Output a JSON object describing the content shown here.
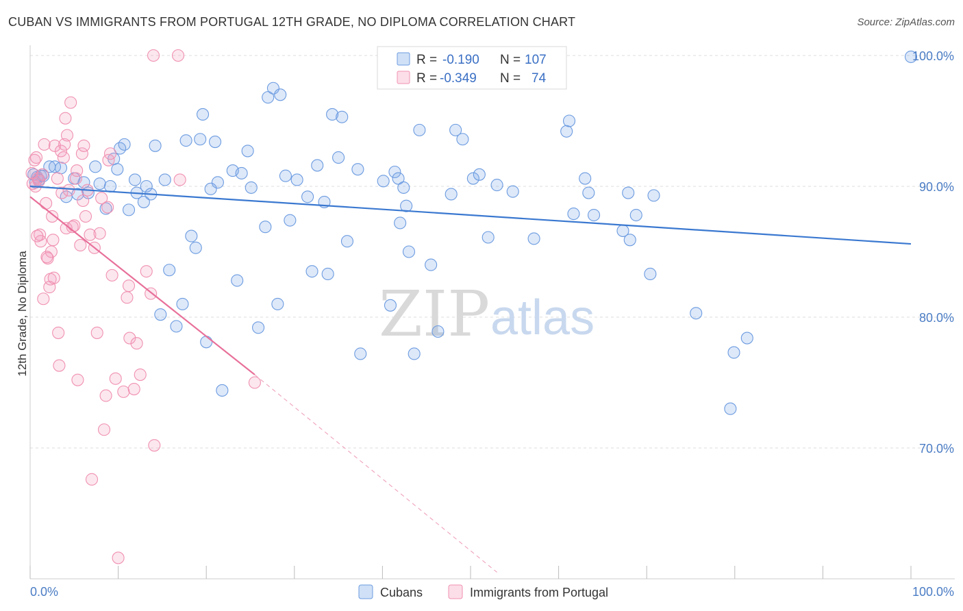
{
  "title": "CUBAN VS IMMIGRANTS FROM PORTUGAL 12TH GRADE, NO DIPLOMA CORRELATION CHART",
  "source": "Source: ZipAtlas.com",
  "watermark": {
    "zip": "ZIP",
    "atlas": "atlas"
  },
  "legend": {
    "rows": [
      {
        "r_label": "R =",
        "r_value": "-0.190",
        "n_label": "N =",
        "n_value": "107",
        "color": "#6b9be0"
      },
      {
        "r_label": "R =",
        "r_value": "-0.349",
        "n_label": "N =",
        "n_value": "74",
        "color": "#f090b0"
      }
    ]
  },
  "bottom_legend": [
    "Cubans",
    "Immigrants from Portugal"
  ],
  "chart_data": {
    "type": "scatter",
    "ylabel": "12th Grade, No Diploma",
    "xlabel": "",
    "x_ticks": [
      "0.0%",
      "100.0%"
    ],
    "y_ticks": [
      {
        "value": 100,
        "label": "100.0%"
      },
      {
        "value": 90,
        "label": "90.0%"
      },
      {
        "value": 80,
        "label": "80.0%"
      },
      {
        "value": 70,
        "label": "70.0%"
      }
    ],
    "xlim": [
      0,
      100
    ],
    "ylim": [
      60.5,
      102.5
    ],
    "grid": true,
    "series": [
      {
        "name": "Cubans",
        "color": "#6b9be0",
        "fill": "rgba(120,165,230,0.25)",
        "trend": {
          "x0": 0,
          "y0": 90.0,
          "x1": 100,
          "y1": 85.6,
          "dashed_to": null
        },
        "points": [
          [
            0.4,
            90.9
          ],
          [
            0.6,
            90.3
          ],
          [
            0.8,
            90.7
          ],
          [
            1.0,
            90.5
          ],
          [
            1.2,
            90.8
          ],
          [
            1.5,
            90.8
          ],
          [
            2.2,
            91.5
          ],
          [
            2.8,
            91.5
          ],
          [
            3.5,
            91.4
          ],
          [
            4.1,
            89.2
          ],
          [
            5.0,
            90.6
          ],
          [
            5.4,
            89.4
          ],
          [
            6.1,
            90.3
          ],
          [
            6.6,
            89.5
          ],
          [
            7.4,
            91.5
          ],
          [
            7.9,
            90.2
          ],
          [
            8.6,
            88.3
          ],
          [
            9.1,
            90.0
          ],
          [
            9.5,
            92.1
          ],
          [
            9.9,
            91.3
          ],
          [
            10.2,
            92.9
          ],
          [
            10.7,
            93.2
          ],
          [
            11.2,
            88.2
          ],
          [
            11.9,
            90.5
          ],
          [
            12.1,
            89.5
          ],
          [
            12.9,
            88.8
          ],
          [
            13.2,
            90.0
          ],
          [
            13.7,
            89.4
          ],
          [
            14.2,
            93.1
          ],
          [
            14.8,
            80.2
          ],
          [
            15.3,
            90.5
          ],
          [
            15.8,
            83.6
          ],
          [
            16.6,
            79.3
          ],
          [
            17.3,
            81.0
          ],
          [
            17.7,
            93.5
          ],
          [
            18.3,
            86.2
          ],
          [
            18.8,
            85.3
          ],
          [
            19.3,
            93.6
          ],
          [
            19.6,
            95.5
          ],
          [
            20.0,
            78.1
          ],
          [
            20.5,
            89.8
          ],
          [
            21.0,
            93.4
          ],
          [
            21.3,
            90.3
          ],
          [
            21.8,
            74.4
          ],
          [
            23.0,
            91.2
          ],
          [
            23.5,
            82.8
          ],
          [
            24.0,
            91.0
          ],
          [
            24.7,
            92.7
          ],
          [
            25.1,
            89.9
          ],
          [
            25.9,
            79.2
          ],
          [
            26.7,
            86.9
          ],
          [
            27.0,
            96.8
          ],
          [
            27.6,
            97.5
          ],
          [
            28.1,
            81.0
          ],
          [
            28.4,
            97.0
          ],
          [
            29.0,
            90.8
          ],
          [
            29.5,
            87.4
          ],
          [
            30.3,
            90.5
          ],
          [
            31.5,
            89.2
          ],
          [
            32.0,
            83.5
          ],
          [
            32.6,
            91.6
          ],
          [
            33.4,
            88.8
          ],
          [
            33.8,
            83.3
          ],
          [
            34.3,
            95.5
          ],
          [
            35.0,
            92.2
          ],
          [
            35.4,
            95.3
          ],
          [
            36.0,
            85.8
          ],
          [
            37.2,
            91.3
          ],
          [
            37.5,
            77.2
          ],
          [
            40.1,
            90.4
          ],
          [
            40.9,
            80.9
          ],
          [
            41.4,
            91.1
          ],
          [
            41.8,
            90.6
          ],
          [
            42.0,
            87.2
          ],
          [
            42.4,
            89.9
          ],
          [
            42.7,
            88.5
          ],
          [
            43.0,
            85.0
          ],
          [
            43.6,
            77.2
          ],
          [
            44.2,
            94.3
          ],
          [
            45.5,
            84.0
          ],
          [
            46.3,
            78.9
          ],
          [
            47.8,
            89.4
          ],
          [
            48.3,
            94.3
          ],
          [
            49.1,
            93.6
          ],
          [
            50.3,
            90.6
          ],
          [
            51.0,
            90.9
          ],
          [
            52.0,
            86.1
          ],
          [
            53.0,
            90.1
          ],
          [
            54.8,
            89.6
          ],
          [
            57.2,
            86.0
          ],
          [
            60.9,
            94.2
          ],
          [
            61.2,
            95.0
          ],
          [
            61.7,
            87.9
          ],
          [
            63.0,
            90.6
          ],
          [
            63.4,
            89.5
          ],
          [
            64.0,
            87.8
          ],
          [
            67.3,
            86.6
          ],
          [
            67.9,
            89.5
          ],
          [
            68.1,
            85.9
          ],
          [
            68.8,
            87.8
          ],
          [
            70.4,
            83.3
          ],
          [
            70.8,
            89.3
          ],
          [
            75.6,
            80.3
          ],
          [
            79.5,
            73.0
          ],
          [
            79.9,
            77.3
          ],
          [
            81.4,
            78.4
          ],
          [
            100.0,
            99.9
          ]
        ]
      },
      {
        "name": "Immigrants from Portugal",
        "color": "#f090b0",
        "fill": "rgba(245,160,190,0.25)",
        "trend": {
          "x0": 0,
          "y0": 89.2,
          "x1": 25.5,
          "y1": 75.6,
          "dashed_to": [
            53,
            60.5
          ]
        },
        "points": [
          [
            0.2,
            91.0
          ],
          [
            0.3,
            90.2
          ],
          [
            0.5,
            92.0
          ],
          [
            0.6,
            90.0
          ],
          [
            0.7,
            92.2
          ],
          [
            0.9,
            90.6
          ],
          [
            1.0,
            90.4
          ],
          [
            1.1,
            86.3
          ],
          [
            1.2,
            85.8
          ],
          [
            1.4,
            90.9
          ],
          [
            1.5,
            81.4
          ],
          [
            1.6,
            93.2
          ],
          [
            1.8,
            88.7
          ],
          [
            2.0,
            84.5
          ],
          [
            2.2,
            82.3
          ],
          [
            2.3,
            82.9
          ],
          [
            2.4,
            85.0
          ],
          [
            2.5,
            87.7
          ],
          [
            2.6,
            85.9
          ],
          [
            2.8,
            93.1
          ],
          [
            3.1,
            90.6
          ],
          [
            3.2,
            78.8
          ],
          [
            3.3,
            76.3
          ],
          [
            3.5,
            92.7
          ],
          [
            3.6,
            89.5
          ],
          [
            3.8,
            92.2
          ],
          [
            3.9,
            93.2
          ],
          [
            4.0,
            95.2
          ],
          [
            4.1,
            86.8
          ],
          [
            4.2,
            93.9
          ],
          [
            4.4,
            89.7
          ],
          [
            4.6,
            96.4
          ],
          [
            4.8,
            86.9
          ],
          [
            5.0,
            87.0
          ],
          [
            5.2,
            90.6
          ],
          [
            5.4,
            75.2
          ],
          [
            5.7,
            85.5
          ],
          [
            5.9,
            92.5
          ],
          [
            6.1,
            93.1
          ],
          [
            6.3,
            87.7
          ],
          [
            6.5,
            89.7
          ],
          [
            6.8,
            86.3
          ],
          [
            7.0,
            67.6
          ],
          [
            7.3,
            85.3
          ],
          [
            7.6,
            78.8
          ],
          [
            7.9,
            86.4
          ],
          [
            8.1,
            89.1
          ],
          [
            8.4,
            71.4
          ],
          [
            8.6,
            74.0
          ],
          [
            8.8,
            88.4
          ],
          [
            8.9,
            92.0
          ],
          [
            9.1,
            92.5
          ],
          [
            9.3,
            83.2
          ],
          [
            9.7,
            75.3
          ],
          [
            10.0,
            61.6
          ],
          [
            10.6,
            74.3
          ],
          [
            11.0,
            81.5
          ],
          [
            11.2,
            82.4
          ],
          [
            11.3,
            78.4
          ],
          [
            11.8,
            74.5
          ],
          [
            12.1,
            78.0
          ],
          [
            12.5,
            75.6
          ],
          [
            13.2,
            83.5
          ],
          [
            13.7,
            81.8
          ],
          [
            14.1,
            70.2
          ],
          [
            14.0,
            100.0
          ],
          [
            16.8,
            100.0
          ],
          [
            17.0,
            90.5
          ],
          [
            25.5,
            75.0
          ],
          [
            1.9,
            84.6
          ],
          [
            0.8,
            86.2
          ],
          [
            2.7,
            83.0
          ],
          [
            5.3,
            91.2
          ],
          [
            6.0,
            88.9
          ]
        ]
      }
    ]
  }
}
